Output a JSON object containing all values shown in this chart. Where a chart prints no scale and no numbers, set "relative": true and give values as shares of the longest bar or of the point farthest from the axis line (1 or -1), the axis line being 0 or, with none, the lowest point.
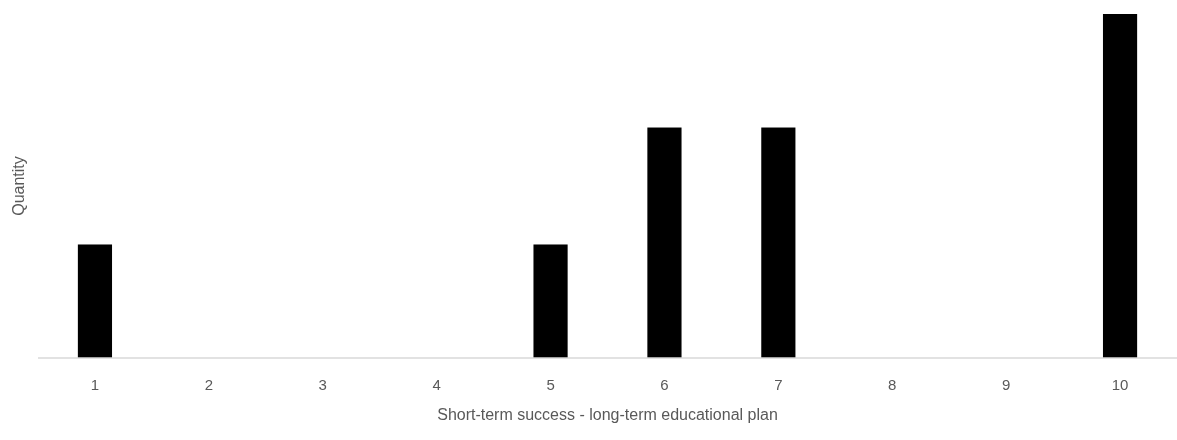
{
  "chart_data": {
    "type": "bar",
    "relative": true,
    "xlabel": "Short-term success - long-term educational plan",
    "ylabel": "Quantity",
    "categories": [
      "1",
      "2",
      "3",
      "4",
      "5",
      "6",
      "7",
      "8",
      "9",
      "10"
    ],
    "values": [
      0.33,
      0,
      0,
      0,
      0.33,
      0.67,
      0.67,
      0,
      0,
      1
    ],
    "color": "#000000"
  }
}
